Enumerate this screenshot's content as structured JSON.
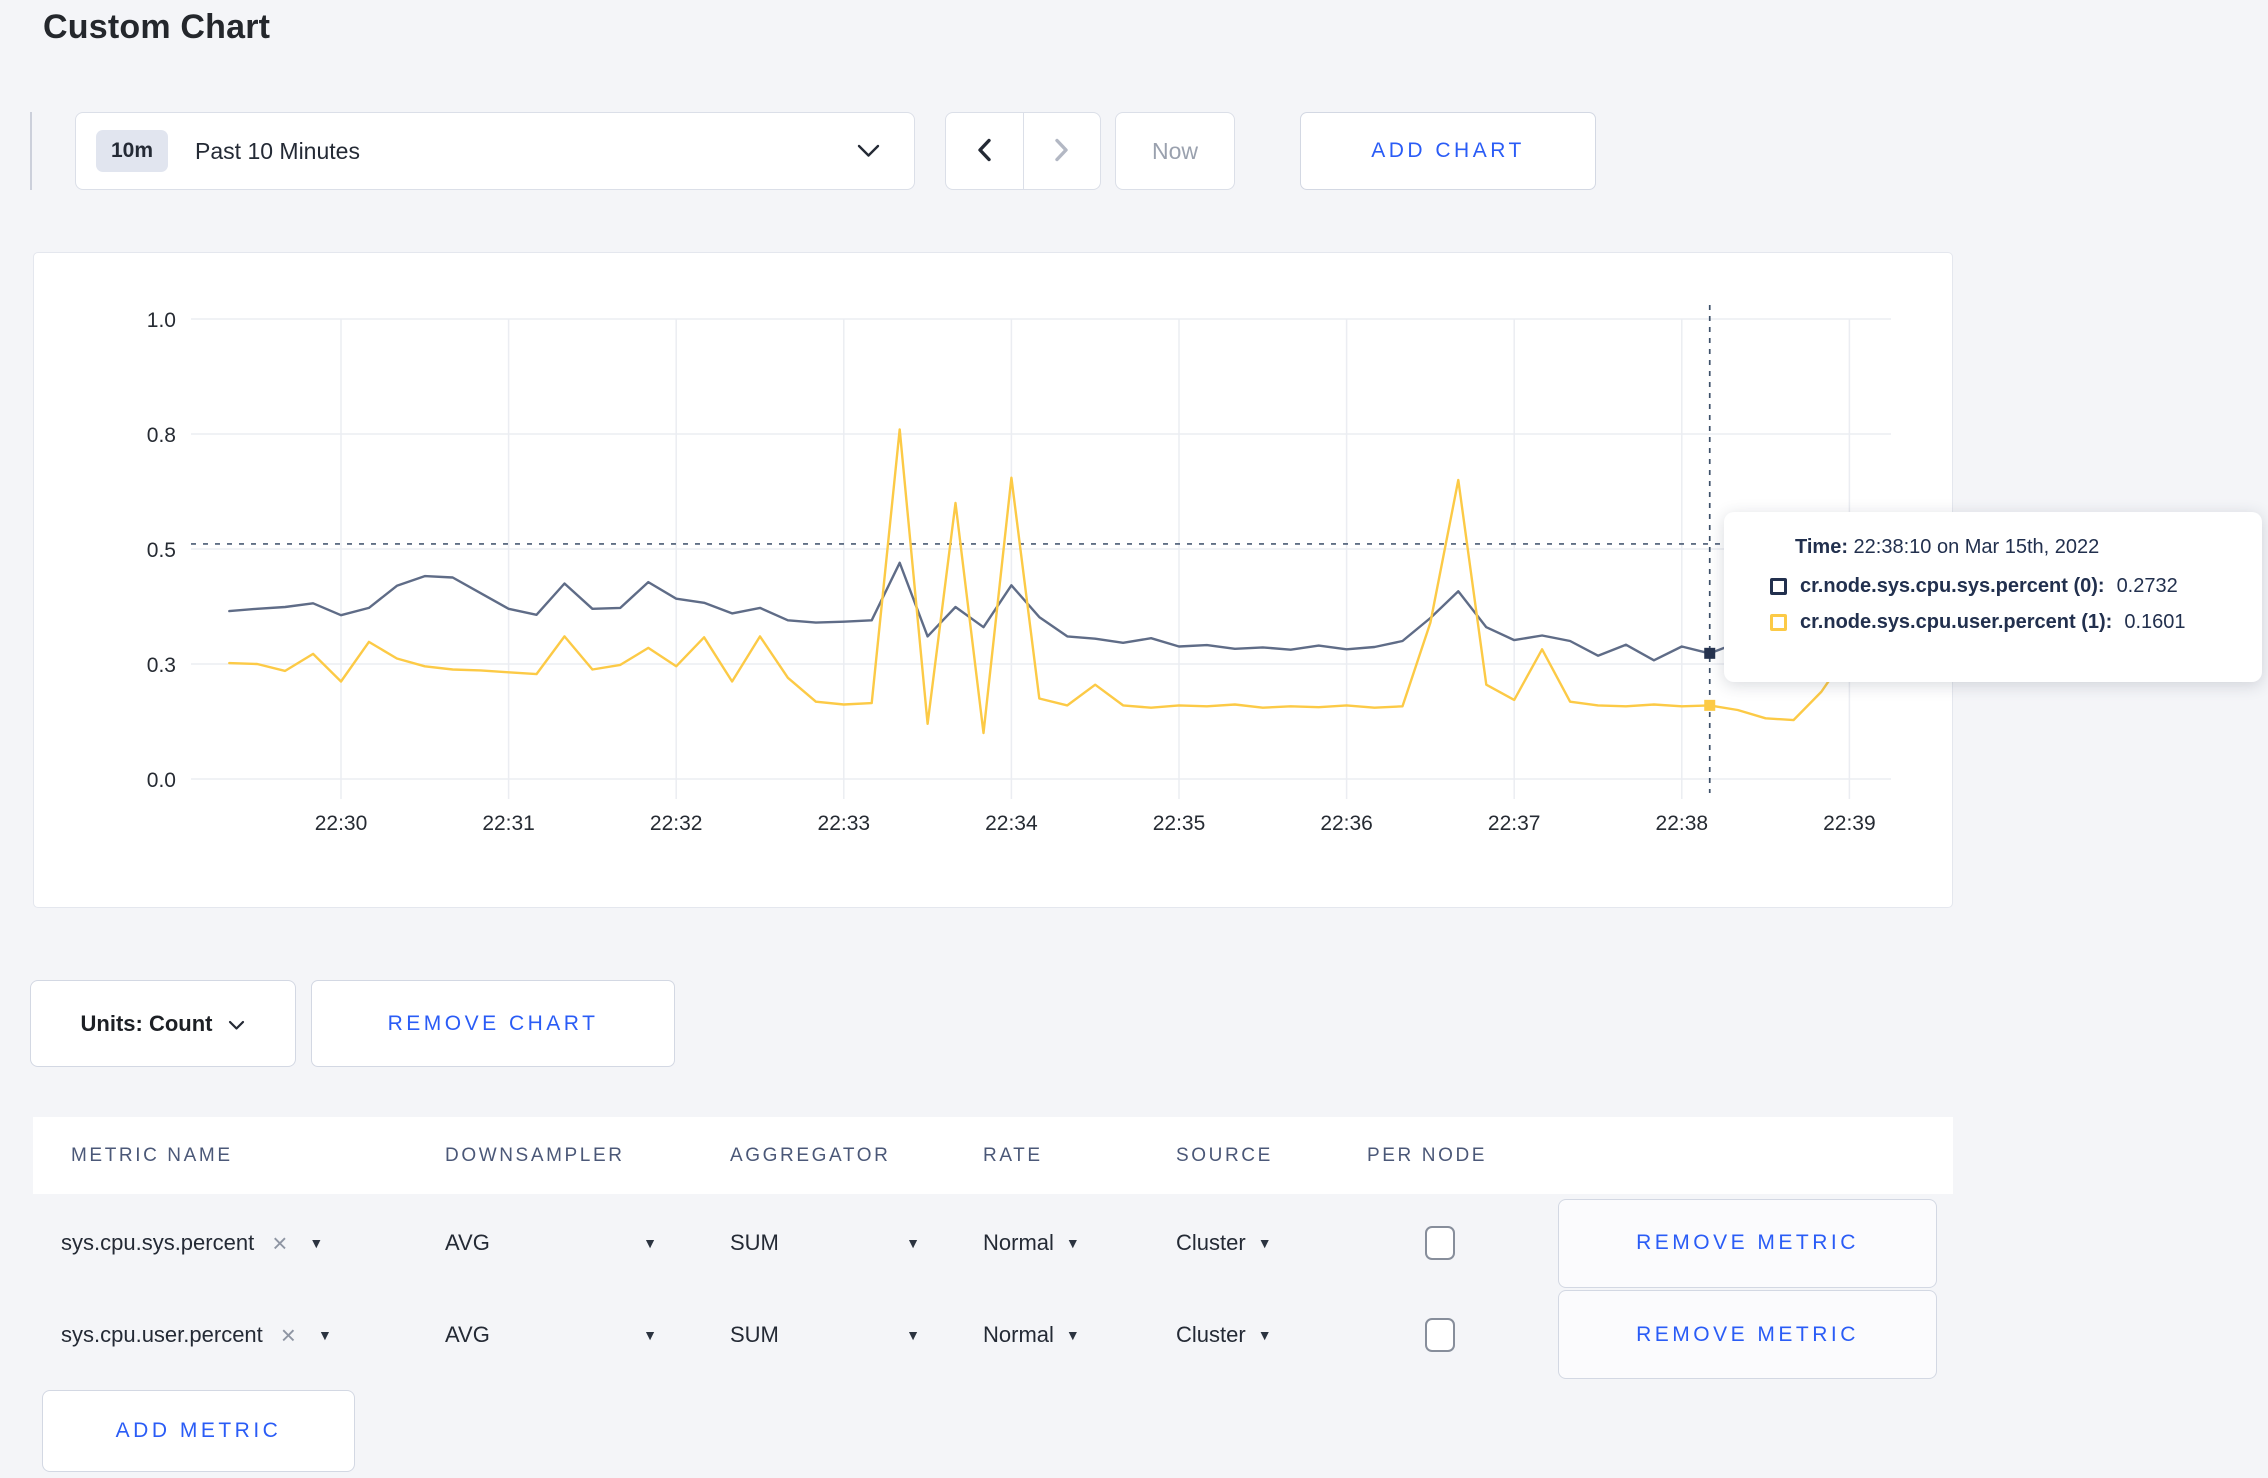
{
  "page": {
    "title": "Custom Chart"
  },
  "toolbar": {
    "range_badge": "10m",
    "range_label": "Past 10 Minutes",
    "now_label": "Now",
    "add_chart_label": "ADD CHART"
  },
  "chart_data": {
    "type": "line",
    "title": "",
    "xlabel": "",
    "ylabel": "",
    "ylim": [
      0,
      1
    ],
    "grid": true,
    "x_ticks": [
      "22:30",
      "22:31",
      "22:32",
      "22:33",
      "22:34",
      "22:35",
      "22:36",
      "22:37",
      "22:38",
      "22:39"
    ],
    "x_tick_interval_sec": 60,
    "y_ticks": [
      {
        "value": 0.0,
        "label": "0.0"
      },
      {
        "value": 0.25,
        "label": "0.3"
      },
      {
        "value": 0.5,
        "label": "0.5"
      },
      {
        "value": 0.75,
        "label": "0.8"
      },
      {
        "value": 1.0,
        "label": "1.0"
      }
    ],
    "x_start_sec": -40,
    "x_step_sec": 10,
    "series": [
      {
        "name": "cr.node.sys.cpu.sys.percent",
        "color": "#5f6c87",
        "values": [
          0.365,
          0.37,
          0.374,
          0.382,
          0.356,
          0.372,
          0.42,
          0.441,
          0.438,
          0.404,
          0.37,
          0.357,
          0.425,
          0.37,
          0.372,
          0.428,
          0.392,
          0.383,
          0.36,
          0.372,
          0.345,
          0.34,
          0.342,
          0.345,
          0.47,
          0.31,
          0.374,
          0.33,
          0.421,
          0.352,
          0.31,
          0.305,
          0.296,
          0.306,
          0.288,
          0.291,
          0.283,
          0.286,
          0.281,
          0.29,
          0.282,
          0.287,
          0.3,
          0.35,
          0.408,
          0.33,
          0.302,
          0.312,
          0.3,
          0.268,
          0.292,
          0.258,
          0.288,
          0.273,
          0.296,
          0.3,
          0.312,
          0.3,
          0.297,
          0.306
        ]
      },
      {
        "name": "cr.node.sys.cpu.user.percent",
        "color": "#fcca46",
        "values": [
          0.252,
          0.25,
          0.235,
          0.272,
          0.212,
          0.298,
          0.262,
          0.245,
          0.238,
          0.236,
          0.232,
          0.228,
          0.31,
          0.238,
          0.248,
          0.285,
          0.245,
          0.308,
          0.212,
          0.31,
          0.22,
          0.168,
          0.162,
          0.165,
          0.76,
          0.12,
          0.6,
          0.1,
          0.655,
          0.175,
          0.16,
          0.205,
          0.16,
          0.155,
          0.16,
          0.158,
          0.162,
          0.155,
          0.158,
          0.156,
          0.16,
          0.155,
          0.158,
          0.34,
          0.65,
          0.205,
          0.172,
          0.282,
          0.168,
          0.16,
          0.158,
          0.162,
          0.158,
          0.16,
          0.15,
          0.132,
          0.128,
          0.19,
          0.278,
          0.252
        ]
      }
    ],
    "hover": {
      "t": 490,
      "time": "22:38:10",
      "guide_value": 0.511,
      "marker_values": [
        0.2732,
        0.1601
      ],
      "marker_colors": [
        "#26334f",
        "#fcca46"
      ]
    },
    "legend_position": "tooltip"
  },
  "tooltip": {
    "time_label": "Time:",
    "time_value": "22:38:10 on Mar 15th, 2022",
    "rows": [
      {
        "label": "cr.node.sys.cpu.sys.percent (0):",
        "value": "0.2732",
        "color": "#22304e"
      },
      {
        "label": "cr.node.sys.cpu.user.percent (1):",
        "value": "0.1601",
        "color": "#fcca46"
      }
    ]
  },
  "chart_controls": {
    "units_label": "Units: Count",
    "remove_chart_label": "REMOVE CHART"
  },
  "metrics_table": {
    "headers": [
      "METRIC NAME",
      "DOWNSAMPLER",
      "AGGREGATOR",
      "RATE",
      "SOURCE",
      "PER NODE"
    ],
    "rows": [
      {
        "metric": "sys.cpu.sys.percent",
        "remove_icon": "×",
        "downsampler": "AVG",
        "aggregator": "SUM",
        "rate": "Normal",
        "source": "Cluster",
        "per_node_checked": false,
        "remove_label": "REMOVE METRIC"
      },
      {
        "metric": "sys.cpu.user.percent",
        "remove_icon": "×",
        "downsampler": "AVG",
        "aggregator": "SUM",
        "rate": "Normal",
        "source": "Cluster",
        "per_node_checked": false,
        "remove_label": "REMOVE METRIC"
      }
    ],
    "add_metric_label": "ADD METRIC"
  }
}
